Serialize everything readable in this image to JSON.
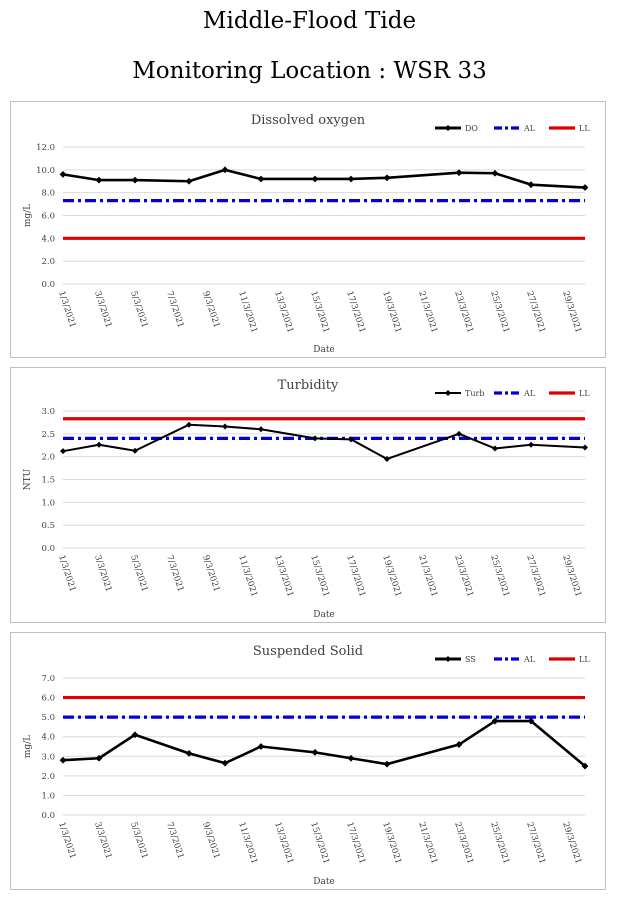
{
  "header": {
    "title": "Middle-Flood Tide",
    "subtitle": "Monitoring Location : WSR 33"
  },
  "colors": {
    "series": "#000000",
    "al": "#0000dd",
    "ll": "#e00000",
    "grid": "#d9d9d9",
    "frame": "#bfbfbf"
  },
  "chart_data": [
    {
      "type": "line",
      "title": "Dissolved oxygen",
      "xlabel": "Date",
      "ylabel": "mg/L",
      "ylim": [
        0,
        12
      ],
      "yticks": [
        "0.0",
        "2.0",
        "4.0",
        "6.0",
        "8.0",
        "10.0",
        "12.0"
      ],
      "categories": [
        "1/3/2021",
        "3/3/2021",
        "5/3/2021",
        "7/3/2021",
        "9/3/2021",
        "11/3/2021",
        "13/3/2021",
        "15/3/2021",
        "17/3/2021",
        "19/3/2021",
        "21/3/2021",
        "23/3/2021",
        "25/3/2021",
        "27/3/2021",
        "29/3/2021"
      ],
      "legend_position": "top-right",
      "series": [
        {
          "name": "DO",
          "style": "solid-marker",
          "color": "#000000",
          "x": [
            1,
            3,
            5,
            8,
            10,
            12,
            15,
            17,
            19,
            23,
            25,
            27,
            30
          ],
          "values": [
            9.6,
            9.1,
            9.1,
            9.0,
            10.0,
            9.2,
            9.2,
            9.2,
            9.3,
            9.75,
            9.7,
            8.7,
            8.45
          ]
        },
        {
          "name": "AL",
          "style": "dashdot",
          "color": "#0000dd",
          "x": [
            1,
            30
          ],
          "values": [
            7.3,
            7.3
          ]
        },
        {
          "name": "LL",
          "style": "solid",
          "color": "#e00000",
          "x": [
            1,
            30
          ],
          "values": [
            4.0,
            4.0
          ]
        }
      ]
    },
    {
      "type": "line",
      "title": "Turbidity",
      "xlabel": "Date",
      "ylabel": "NTU",
      "ylim": [
        0,
        3
      ],
      "yticks": [
        "0.0",
        "0.5",
        "1.0",
        "1.5",
        "2.0",
        "2.5",
        "3.0"
      ],
      "categories": [
        "1/3/2021",
        "3/3/2021",
        "5/3/2021",
        "7/3/2021",
        "9/3/2021",
        "11/3/2021",
        "13/3/2021",
        "15/3/2021",
        "17/3/2021",
        "19/3/2021",
        "21/3/2021",
        "23/3/2021",
        "25/3/2021",
        "27/3/2021",
        "29/3/2021"
      ],
      "legend_position": "top-right",
      "series": [
        {
          "name": "Turb",
          "style": "solid-marker-thin",
          "color": "#000000",
          "x": [
            1,
            3,
            5,
            8,
            10,
            12,
            15,
            17,
            19,
            23,
            25,
            27,
            30
          ],
          "values": [
            2.12,
            2.26,
            2.13,
            2.7,
            2.66,
            2.6,
            2.4,
            2.38,
            1.95,
            2.5,
            2.18,
            2.26,
            2.2
          ]
        },
        {
          "name": "AL",
          "style": "dashdot",
          "color": "#0000dd",
          "x": [
            1,
            30
          ],
          "values": [
            2.4,
            2.4
          ]
        },
        {
          "name": "LL",
          "style": "solid",
          "color": "#e00000",
          "x": [
            1,
            30
          ],
          "values": [
            2.83,
            2.83
          ]
        }
      ]
    },
    {
      "type": "line",
      "title": "Suspended Solid",
      "xlabel": "Date",
      "ylabel": "mg/L",
      "ylim": [
        0,
        7
      ],
      "yticks": [
        "0.0",
        "1.0",
        "2.0",
        "3.0",
        "4.0",
        "5.0",
        "6.0",
        "7.0"
      ],
      "categories": [
        "1/3/2021",
        "3/3/2021",
        "5/3/2021",
        "7/3/2021",
        "9/3/2021",
        "11/3/2021",
        "13/3/2021",
        "15/3/2021",
        "17/3/2021",
        "19/3/2021",
        "21/3/2021",
        "23/3/2021",
        "25/3/2021",
        "27/3/2021",
        "29/3/2021"
      ],
      "legend_position": "top-right",
      "series": [
        {
          "name": "SS",
          "style": "solid-marker",
          "color": "#000000",
          "x": [
            1,
            3,
            5,
            8,
            10,
            12,
            15,
            17,
            19,
            23,
            25,
            27,
            30
          ],
          "values": [
            2.8,
            2.9,
            4.1,
            3.15,
            2.65,
            3.5,
            3.2,
            2.9,
            2.6,
            3.6,
            4.8,
            4.8,
            2.5
          ]
        },
        {
          "name": "AL",
          "style": "dashdot",
          "color": "#0000dd",
          "x": [
            1,
            30
          ],
          "values": [
            5.0,
            5.0
          ]
        },
        {
          "name": "LL",
          "style": "solid",
          "color": "#e00000",
          "x": [
            1,
            30
          ],
          "values": [
            6.0,
            6.0
          ]
        }
      ]
    }
  ]
}
